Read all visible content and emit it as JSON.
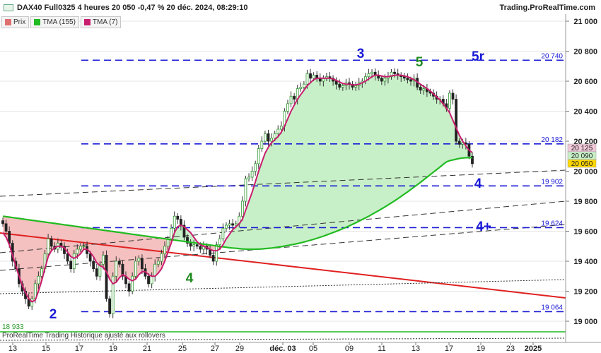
{
  "header": {
    "title": "DAX40 Full0325 4 heures 20 050 -0,47 % 20 déc. 2024, 08:29:10",
    "site": "Trading.ProRealTime.com"
  },
  "legend": [
    {
      "label": "Prix",
      "color": "#e07070"
    },
    {
      "label": "TMA (155)",
      "color": "#22bb22"
    },
    {
      "label": "TMA (7)",
      "color": "#c81e6e"
    }
  ],
  "footer": {
    "note": "ProRealTime Trading  Historique ajusté aux rollovers",
    "min_label": "18 933"
  },
  "colors": {
    "bull": "#2f9a2f",
    "bear": "#222222",
    "tma155": "#22bb22",
    "tma7": "#c81e6e",
    "level_lines": "#1a1ad6",
    "trend_red": "#e02020",
    "fill_green": "#c8f0c8",
    "fill_red": "#f4c0c0"
  },
  "chart_data": {
    "type": "candlestick",
    "y_axis": {
      "range": [
        18930,
        21000
      ],
      "ticks": [
        19000,
        19200,
        19400,
        19600,
        19800,
        20000,
        20200,
        20400,
        20600,
        20800,
        21000
      ],
      "tick_labels": [
        "19 000",
        "19 200",
        "19 400",
        "19 600",
        "19 800",
        "20 000",
        "20 200",
        "20 400",
        "20 600",
        "20 800",
        "21 000"
      ],
      "side": "right"
    },
    "x_axis": {
      "tick_labels": [
        "13",
        "15",
        "17",
        "19",
        "21",
        "25",
        "27",
        "29",
        "déc. 03",
        "05",
        "09",
        "11",
        "13",
        "17",
        "19",
        "23",
        "2025"
      ]
    },
    "price_markers": [
      {
        "label": "20 125",
        "value": 20125,
        "bg": "#f0c8d8"
      },
      {
        "label": "20 090",
        "value": 20090,
        "bg": "#c8f0c8"
      },
      {
        "label": "20 050",
        "value": 20050,
        "bg": "#ffd700"
      }
    ],
    "levels": [
      {
        "value": 20740,
        "label": "20 740"
      },
      {
        "value": 20182,
        "label": "20 182"
      },
      {
        "value": 19902,
        "label": "19 902"
      },
      {
        "value": 19624,
        "label": "19 624"
      },
      {
        "value": 19064,
        "label": "19 064"
      }
    ],
    "wave_labels": [
      {
        "text": "3",
        "color": "#1a1ad6"
      },
      {
        "text": "5",
        "color": "#1f8a1f"
      },
      {
        "text": "5r",
        "color": "#1a1ad6"
      },
      {
        "text": "4",
        "color": "#1a1ad6"
      },
      {
        "text": "4+",
        "color": "#1a1ad6"
      },
      {
        "text": "4",
        "color": "#1f8a1f"
      },
      {
        "text": "2",
        "color": "#1a1ad6"
      }
    ],
    "close": [
      19650,
      19600,
      19520,
      19400,
      19350,
      19250,
      19200,
      19150,
      19100,
      19150,
      19250,
      19300,
      19350,
      19450,
      19550,
      19500,
      19480,
      19520,
      19500,
      19450,
      19400,
      19350,
      19450,
      19480,
      19500,
      19500,
      19450,
      19400,
      19350,
      19300,
      19380,
      19440,
      19150,
      19050,
      19300,
      19400,
      19380,
      19300,
      19250,
      19200,
      19300,
      19400,
      19420,
      19350,
      19300,
      19250,
      19300,
      19380,
      19400,
      19450,
      19500,
      19550,
      19620,
      19700,
      19680,
      19640,
      19560,
      19520,
      19500,
      19510,
      19500,
      19480,
      19500,
      19480,
      19440,
      19400,
      19510,
      19550,
      19620,
      19640,
      19650,
      19640,
      19650,
      19700,
      19800,
      19950,
      19960,
      20000,
      20050,
      20150,
      20200,
      20250,
      20200,
      20220,
      20250,
      20280,
      20300,
      20400,
      20450,
      20500,
      20480,
      20550,
      20560,
      20580,
      20650,
      20620,
      20640,
      20620,
      20600,
      20620,
      20630,
      20620,
      20600,
      20580,
      20560,
      20570,
      20590,
      20580,
      20560,
      20570,
      20590,
      20600,
      20630,
      20650,
      20660,
      20640,
      20620,
      20600,
      20620,
      20630,
      20660,
      20650,
      20640,
      20630,
      20620,
      20610,
      20600,
      20620,
      20560,
      20540,
      20550,
      20530,
      20520,
      20500,
      20480,
      20480,
      20450,
      20420,
      20520,
      20480,
      20200,
      20180,
      20190,
      20180,
      20100,
      20050
    ],
    "tma7": [
      19590,
      19560,
      19510,
      19440,
      19370,
      19300,
      19240,
      19190,
      19150,
      19130,
      19140,
      19200,
      19270,
      19350,
      19430,
      19470,
      19490,
      19500,
      19500,
      19490,
      19460,
      19430,
      19420,
      19430,
      19450,
      19480,
      19480,
      19460,
      19430,
      19390,
      19370,
      19360,
      19330,
      19280,
      19250,
      19260,
      19290,
      19310,
      19300,
      19280,
      19270,
      19280,
      19310,
      19330,
      19330,
      19310,
      19300,
      19300,
      19320,
      19350,
      19400,
      19460,
      19520,
      19590,
      19630,
      19640,
      19630,
      19610,
      19590,
      19560,
      19530,
      19510,
      19500,
      19490,
      19480,
      19470,
      19470,
      19480,
      19510,
      19550,
      19580,
      19610,
      19630,
      19650,
      19680,
      19740,
      19800,
      19860,
      19930,
      20000,
      20060,
      20120,
      20160,
      20190,
      20210,
      20230,
      20260,
      20300,
      20350,
      20400,
      20440,
      20480,
      20510,
      20540,
      20570,
      20590,
      20610,
      20620,
      20620,
      20620,
      20620,
      20620,
      20615,
      20605,
      20595,
      20585,
      20580,
      20580,
      20575,
      20575,
      20580,
      20590,
      20600,
      20615,
      20630,
      20640,
      20640,
      20635,
      20630,
      20630,
      20635,
      20640,
      20640,
      20640,
      20635,
      20630,
      20620,
      20610,
      20595,
      20580,
      20565,
      20550,
      20535,
      20515,
      20495,
      20475,
      20450,
      20420,
      20390,
      20340,
      20290,
      20240,
      20200,
      20170,
      20140,
      20125
    ],
    "tma155": [
      19700,
      19697,
      19694,
      19691,
      19688,
      19685,
      19682,
      19679,
      19676,
      19673,
      19670,
      19667,
      19664,
      19661,
      19658,
      19655,
      19652,
      19649,
      19646,
      19643,
      19640,
      19637,
      19634,
      19631,
      19628,
      19625,
      19622,
      19619,
      19616,
      19613,
      19610,
      19607,
      19604,
      19601,
      19598,
      19595,
      19592,
      19589,
      19586,
      19583,
      19580,
      19577,
      19574,
      19571,
      19568,
      19565,
      19562,
      19559,
      19556,
      19553,
      19550,
      19547,
      19544,
      19541,
      19538,
      19535,
      19532,
      19529,
      19526,
      19523,
      19520,
      19517,
      19514,
      19511,
      19508,
      19505,
      19502,
      19499,
      19496,
      19493,
      19490,
      19488,
      19486,
      19484,
      19482,
      19481,
      19480,
      19480,
      19480,
      19481,
      19482,
      19484,
      19486,
      19488,
      19491,
      19494,
      19497,
      19501,
      19505,
      19509,
      19513,
      19518,
      19523,
      19528,
      19534,
      19540,
      19546,
      19553,
      19560,
      19567,
      19575,
      19583,
      19591,
      19599,
      19608,
      19617,
      19626,
      19636,
      19646,
      19656,
      19667,
      19678,
      19689,
      19700,
      19712,
      19724,
      19736,
      19749,
      19762,
      19775,
      19789,
      19803,
      19817,
      19832,
      19847,
      19862,
      19878,
      19894,
      19910,
      19926,
      19943,
      19960,
      19977,
      19994,
      20011,
      20028,
      20045,
      20062,
      20070,
      20075,
      20080,
      20085,
      20088,
      20090,
      20090,
      20090
    ]
  }
}
